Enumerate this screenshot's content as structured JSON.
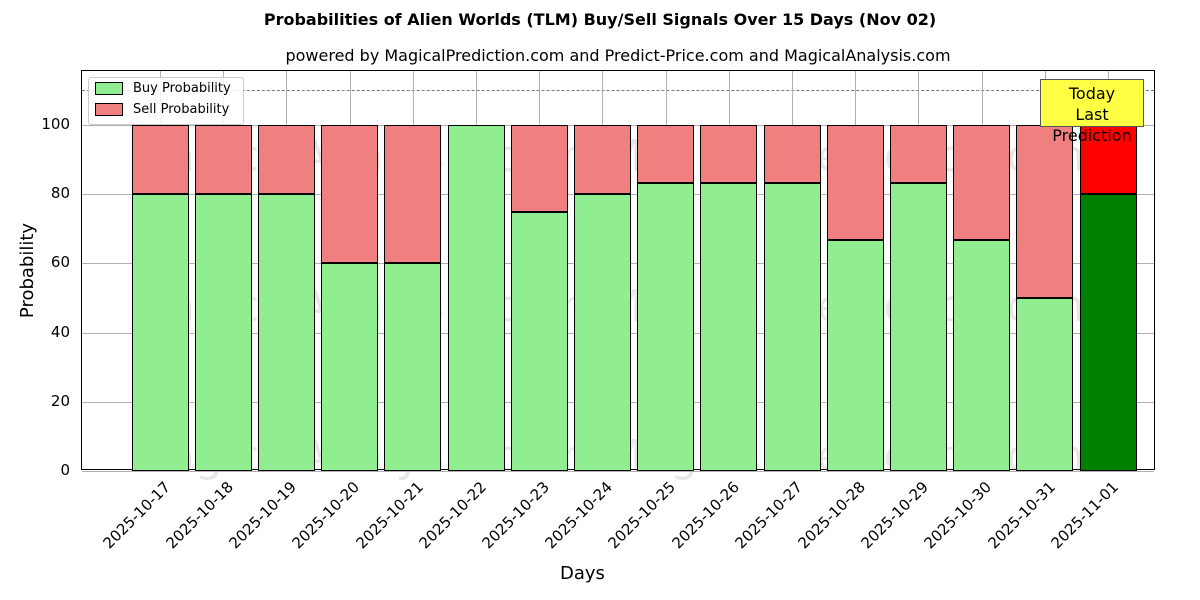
{
  "title": "Probabilities of Alien Worlds (TLM) Buy/Sell Signals Over 15 Days (Nov 02)",
  "subtitle": "powered by MagicalPrediction.com and Predict-Price.com and MagicalAnalysis.com",
  "legend": {
    "buy": "Buy Probability",
    "sell": "Sell Probability"
  },
  "annotation": {
    "line1": "Today",
    "line2": "Last Prediction"
  },
  "watermarks": [
    "MagicalAnalysis.com",
    "MagicalPrediction.com"
  ],
  "colors": {
    "buy": "#90ee90",
    "sell": "#f08080",
    "today_buy": "#008000",
    "today_sell": "#ff0000",
    "annotation": "#ffff44"
  },
  "chart_data": {
    "type": "bar",
    "title": "Probabilities of Alien Worlds (TLM) Buy/Sell Signals Over 15 Days (Nov 02)",
    "xlabel": "Days",
    "ylabel": "Probability",
    "ylim": [
      0,
      115
    ],
    "yticks": [
      0,
      20,
      40,
      60,
      80,
      100
    ],
    "reference_line": 110,
    "categories": [
      "2025-10-17",
      "2025-10-18",
      "2025-10-19",
      "2025-10-20",
      "2025-10-21",
      "2025-10-22",
      "2025-10-23",
      "2025-10-24",
      "2025-10-25",
      "2025-10-26",
      "2025-10-27",
      "2025-10-28",
      "2025-10-29",
      "2025-10-30",
      "2025-10-31",
      "2025-11-01"
    ],
    "series": [
      {
        "name": "Buy Probability",
        "values": [
          80,
          80,
          80,
          60,
          60,
          100,
          75,
          80,
          83.3,
          83.3,
          83.3,
          66.7,
          83.3,
          66.7,
          50,
          80
        ]
      },
      {
        "name": "Sell Probability",
        "values": [
          20,
          20,
          20,
          40,
          40,
          0,
          25,
          20,
          16.7,
          16.7,
          16.7,
          33.3,
          16.7,
          33.3,
          50,
          20
        ]
      }
    ],
    "stacked": true,
    "grid": true,
    "legend_position": "upper left"
  }
}
